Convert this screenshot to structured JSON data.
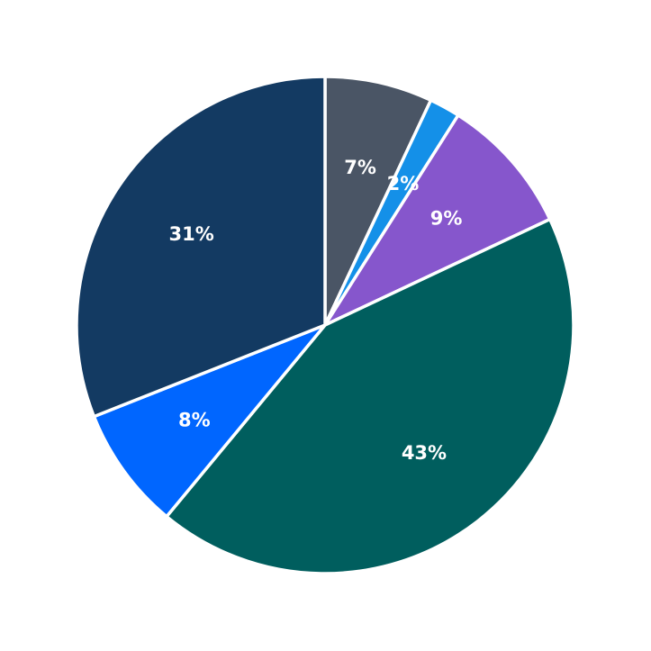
{
  "chart_data": {
    "type": "pie",
    "start": "top",
    "direction": "clockwise",
    "slices": [
      {
        "value": 7,
        "label": "7%",
        "color": "#4a5565"
      },
      {
        "value": 2,
        "label": "2%",
        "color": "#1490e8"
      },
      {
        "value": 9,
        "label": "9%",
        "color": "#8656cc"
      },
      {
        "value": 43,
        "label": "43%",
        "color": "#005e5e"
      },
      {
        "value": 8,
        "label": "8%",
        "color": "#0066ff"
      },
      {
        "value": 31,
        "label": "31%",
        "color": "#133a62"
      }
    ],
    "slice_border_color": "#ffffff"
  }
}
